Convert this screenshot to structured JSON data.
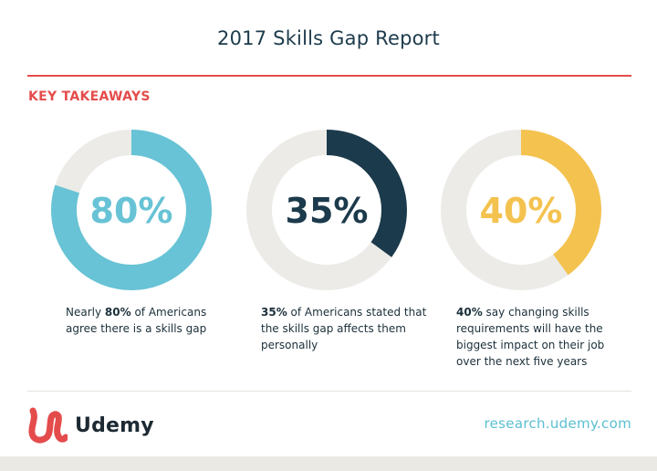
{
  "header": {
    "title": "2017 Skills Gap Report"
  },
  "section_label": "KEY TAKEAWAYS",
  "colors": {
    "accent": "#e44c4c",
    "track": "#ecebe7",
    "teal": "#67c3d5",
    "navy": "#1b3a4b",
    "yellow": "#f4c24f",
    "link": "#5bbfd1"
  },
  "chart_data": [
    {
      "type": "pie",
      "values": [
        80,
        20
      ],
      "label": "80%",
      "color": "#67c3d5",
      "description": {
        "bold": "80%",
        "before": "Nearly ",
        "after": " of Americans agree there is a skills gap"
      }
    },
    {
      "type": "pie",
      "values": [
        35,
        65
      ],
      "label": "35%",
      "color": "#1b3a4b",
      "description": {
        "bold": "35%",
        "before": "",
        "after": " of Americans stated that the skills gap affects them personally"
      }
    },
    {
      "type": "pie",
      "values": [
        40,
        60
      ],
      "label": "40%",
      "color": "#f4c24f",
      "description": {
        "bold": "40%",
        "before": "",
        "after": " say changing skills requirements will have the biggest impact on their job over the next five years"
      }
    }
  ],
  "footer": {
    "brand": "Udemy",
    "logo_icon": "udemy-u-logo-icon",
    "website": "research.udemy.com"
  }
}
